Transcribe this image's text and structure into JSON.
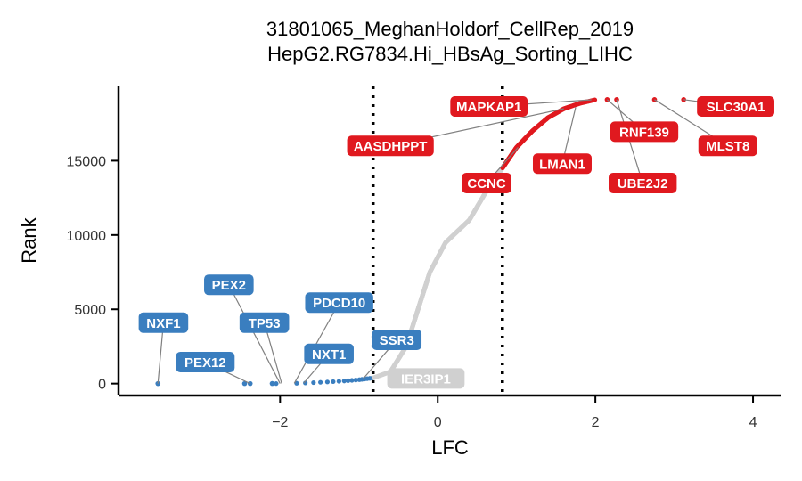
{
  "chart_data": {
    "type": "scatter",
    "title": [
      "31801065_MeghanHoldorf_CellRep_2019",
      "HepG2.RG7834.Hi_HBsAg_Sorting_LIHC"
    ],
    "xlabel": "LFC",
    "ylabel": "Rank",
    "xlim": [
      -4.05,
      4.35
    ],
    "ylim": [
      -800,
      20000
    ],
    "xticks": [
      -2,
      0,
      2,
      4
    ],
    "yticks": [
      0,
      5000,
      10000,
      15000
    ],
    "vlines": [
      -0.82,
      0.82
    ],
    "colors": {
      "negative": "#3a7ebf",
      "neutral": "#d0d0d0",
      "positive": "#e0191f"
    },
    "curve": {
      "total": 19114,
      "neg_threshold": -0.82,
      "pos_threshold": 0.82,
      "knots": [
        [
          -2.05,
          0
        ],
        [
          -1.8,
          20
        ],
        [
          -1.6,
          60
        ],
        [
          -1.4,
          110
        ],
        [
          -1.2,
          170
        ],
        [
          -1.0,
          260
        ],
        [
          -0.82,
          380
        ],
        [
          -0.6,
          800
        ],
        [
          -0.4,
          2500
        ],
        [
          -0.25,
          5000
        ],
        [
          -0.1,
          7500
        ],
        [
          0.1,
          9500
        ],
        [
          0.4,
          11000
        ],
        [
          0.6,
          12800
        ],
        [
          0.82,
          14500
        ],
        [
          1.0,
          15900
        ],
        [
          1.2,
          17000
        ],
        [
          1.4,
          17900
        ],
        [
          1.6,
          18500
        ],
        [
          1.8,
          18860
        ],
        [
          2.0,
          19105
        ]
      ]
    },
    "outliers": [
      {
        "lfc": -3.55,
        "rank": 0,
        "group": "negative"
      },
      {
        "lfc": -2.45,
        "rank": 1,
        "group": "negative"
      },
      {
        "lfc": -2.38,
        "rank": 2,
        "group": "negative"
      },
      {
        "lfc": -2.1,
        "rank": 3,
        "group": "negative"
      },
      {
        "lfc": 2.15,
        "rank": 19110,
        "group": "positive"
      },
      {
        "lfc": 2.27,
        "rank": 19111,
        "group": "positive"
      },
      {
        "lfc": 2.75,
        "rank": 19112,
        "group": "positive"
      },
      {
        "lfc": 3.12,
        "rank": 19113,
        "group": "positive"
      }
    ],
    "labels": [
      {
        "text": "NXF1",
        "group": "negative",
        "point": [
          -3.55,
          0
        ],
        "anchor": [
          -3.48,
          4100
        ]
      },
      {
        "text": "PEX12",
        "group": "negative",
        "point": [
          -2.38,
          2
        ],
        "anchor": [
          -2.95,
          1450
        ]
      },
      {
        "text": "PEX2",
        "group": "negative",
        "point": [
          -2.0,
          5
        ],
        "anchor": [
          -2.65,
          6650
        ]
      },
      {
        "text": "TP53",
        "group": "negative",
        "point": [
          -1.98,
          8
        ],
        "anchor": [
          -2.2,
          4100
        ]
      },
      {
        "text": "PDCD10",
        "group": "negative",
        "point": [
          -1.82,
          20
        ],
        "anchor": [
          -1.25,
          5450
        ]
      },
      {
        "text": "NXT1",
        "group": "negative",
        "point": [
          -1.7,
          40
        ],
        "anchor": [
          -1.38,
          2000
        ]
      },
      {
        "text": "SSR3",
        "group": "negative",
        "point": [
          -0.95,
          300
        ],
        "anchor": [
          -0.52,
          2950
        ]
      },
      {
        "text": "IER3IP1",
        "group": "neutral",
        "point": [
          -0.6,
          750
        ],
        "anchor": [
          -0.15,
          350
        ]
      },
      {
        "text": "MAPKAP1",
        "group": "positive",
        "point": [
          1.95,
          19100
        ],
        "anchor": [
          0.65,
          18650
        ]
      },
      {
        "text": "AASDHPPT",
        "group": "positive",
        "point": [
          1.6,
          18500
        ],
        "anchor": [
          -0.6,
          16000
        ]
      },
      {
        "text": "CCNC",
        "group": "positive",
        "point": [
          1.02,
          15900
        ],
        "anchor": [
          0.62,
          13500
        ]
      },
      {
        "text": "LMAN1",
        "group": "positive",
        "point": [
          1.75,
          18600
        ],
        "anchor": [
          1.58,
          14800
        ]
      },
      {
        "text": "RNF139",
        "group": "positive",
        "point": [
          2.15,
          19110
        ],
        "anchor": [
          2.62,
          16950
        ]
      },
      {
        "text": "UBE2J2",
        "group": "positive",
        "point": [
          2.27,
          19111
        ],
        "anchor": [
          2.6,
          13500
        ]
      },
      {
        "text": "SLC30A1",
        "group": "positive",
        "point": [
          3.12,
          19113
        ],
        "anchor": [
          3.78,
          18650
        ]
      },
      {
        "text": "MLST8",
        "group": "positive",
        "point": [
          2.75,
          19112
        ],
        "anchor": [
          3.68,
          16000
        ]
      }
    ]
  }
}
